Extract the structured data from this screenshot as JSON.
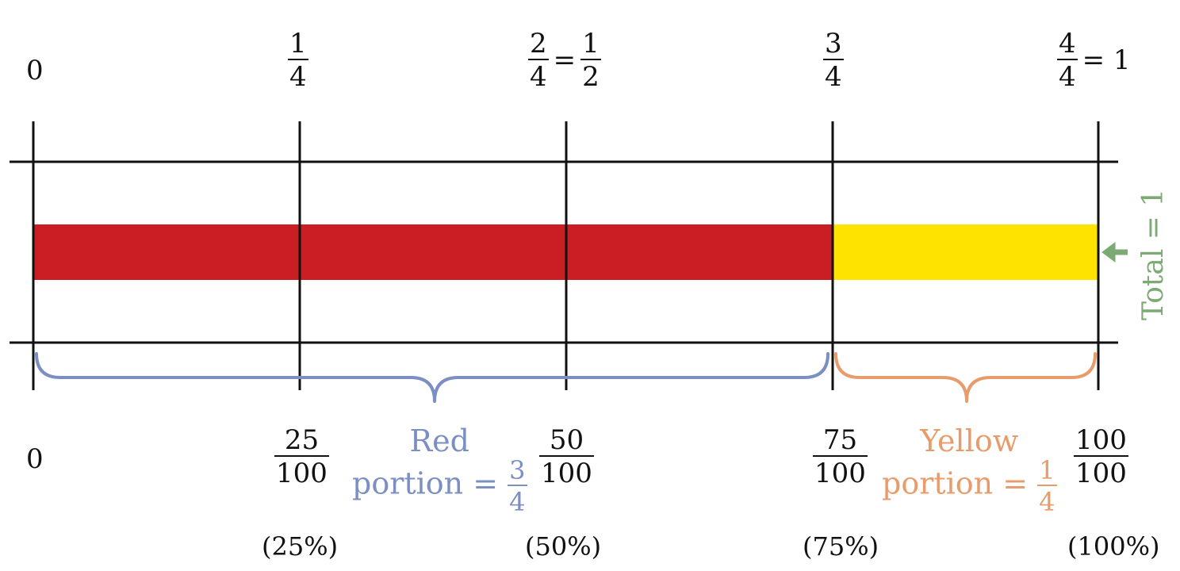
{
  "colors": {
    "red": "#c81e24",
    "yellow": "#fce400",
    "blue_brace": "#7c8fc3",
    "orange_brace": "#e89c6c",
    "green": "#7bab73",
    "line": "#111111"
  },
  "top_labels": {
    "zero": "0",
    "quarter": {
      "num": "1",
      "den": "4"
    },
    "half": {
      "num1": "2",
      "den1": "4",
      "eq": "=",
      "num2": "1",
      "den2": "2"
    },
    "three_quarter": {
      "num": "3",
      "den": "4"
    },
    "whole": {
      "num": "4",
      "den": "4",
      "eq": "= 1"
    }
  },
  "bottom_labels": {
    "zero": "0",
    "f25": {
      "num": "25",
      "den": "100",
      "pct": "(25%)"
    },
    "f50": {
      "num": "50",
      "den": "100",
      "pct": "(50%)"
    },
    "f75": {
      "num": "75",
      "den": "100",
      "pct": "(75%)"
    },
    "f100": {
      "num": "100",
      "den": "100",
      "pct": "(100%)"
    }
  },
  "red_portion": {
    "line1": "Red",
    "line2": "portion =",
    "num": "3",
    "den": "4"
  },
  "yellow_portion": {
    "line1": "Yellow",
    "line2": "portion =",
    "num": "1",
    "den": "4"
  },
  "total_label": "Total = 1",
  "bar": {
    "red_fraction": 0.75,
    "yellow_fraction": 0.25
  }
}
